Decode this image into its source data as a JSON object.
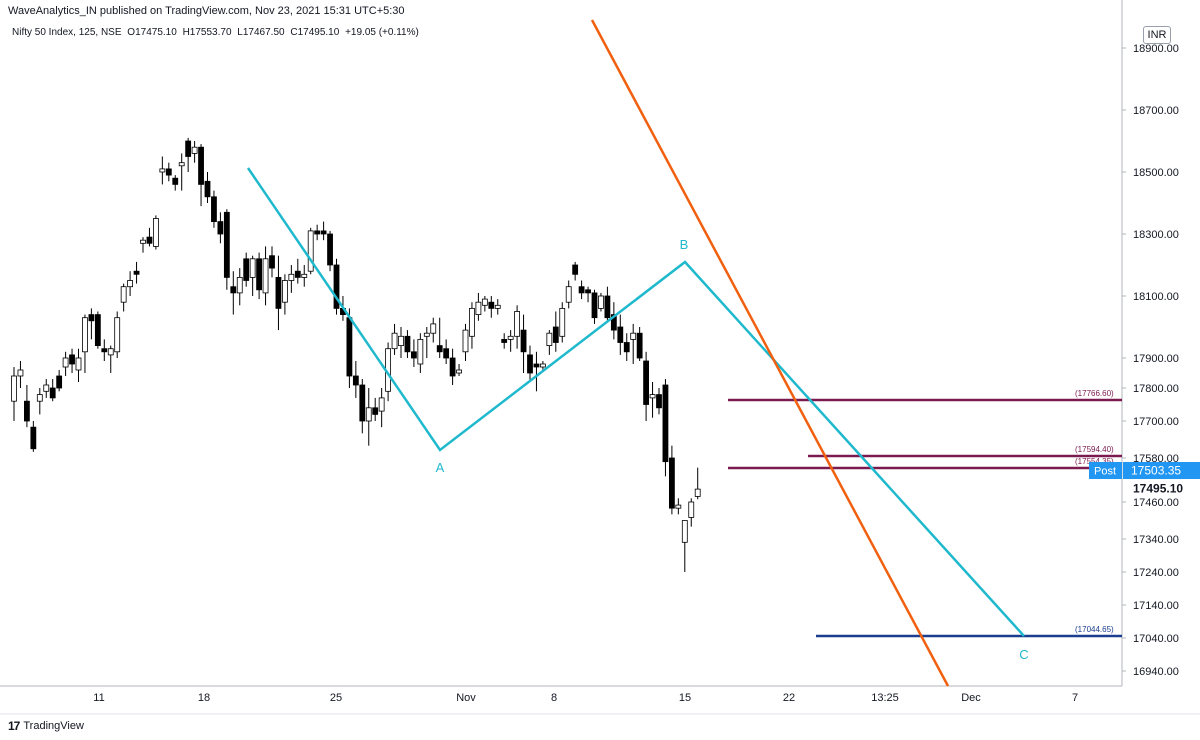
{
  "header": {
    "published": "WaveAnalytics_IN published on TradingView.com, Nov 23, 2021 15:31 UTC+5:30",
    "symbol": "Nifty 50 Index, 125, NSE",
    "open": "O17475.10",
    "high": "H17553.70",
    "low": "L17467.50",
    "close": "C17495.10",
    "change": "+19.05 (+0.11%)",
    "currency": "INR"
  },
  "footer": {
    "brand": "TradingView"
  },
  "colors": {
    "wave": "#1fb9ce",
    "trendline": "#f0600f",
    "level": "#7b1a4e",
    "target": "#1a3d8f",
    "post_badge": "#2196f3",
    "axis_border": "#b2b5be"
  },
  "chart_data": {
    "type": "candlestick",
    "title": "",
    "y_axis": {
      "position": "right",
      "ticks": [
        "18900.00",
        "18700.00",
        "18500.00",
        "18300.00",
        "18100.00",
        "17900.00",
        "17800.00",
        "17700.00",
        "17580.00",
        "17460.00",
        "17340.00",
        "17240.00",
        "17140.00",
        "17040.00",
        "16940.00"
      ]
    },
    "x_axis": {
      "ticks": [
        "11",
        "18",
        "25",
        "Nov",
        "8",
        "15",
        "22",
        "13:25",
        "Dec",
        "7"
      ]
    },
    "price_badges": [
      {
        "label": "Post",
        "value": "17503.35"
      },
      {
        "label": "",
        "value": "17495.10"
      }
    ],
    "horizontal_levels": [
      {
        "label": "(17766.60)",
        "value": 17766.6,
        "color": "#7b1a4e"
      },
      {
        "label": "(17594.40)",
        "value": 17594.4,
        "color": "#7b1a4e"
      },
      {
        "label": "(17554.35)",
        "value": 17554.35,
        "color": "#7b1a4e"
      },
      {
        "label": "(17044.65)",
        "value": 17044.65,
        "color": "#1a3d8f"
      }
    ],
    "wave_labels": [
      {
        "label": "A",
        "price": 17618
      },
      {
        "label": "B",
        "price": 18210
      },
      {
        "label": "C",
        "price": 17044.65
      }
    ],
    "candles": [
      [
        17760,
        17870,
        17700,
        17840
      ],
      [
        17840,
        17890,
        17800,
        17860
      ],
      [
        17760,
        17810,
        17680,
        17700
      ],
      [
        17680,
        17700,
        17600,
        17610
      ],
      [
        17760,
        17800,
        17720,
        17780
      ],
      [
        17790,
        17830,
        17770,
        17810
      ],
      [
        17800,
        17830,
        17760,
        17770
      ],
      [
        17840,
        17860,
        17790,
        17800
      ],
      [
        17870,
        17920,
        17840,
        17900
      ],
      [
        17910,
        17930,
        17850,
        17880
      ],
      [
        17860,
        17930,
        17820,
        17900
      ],
      [
        17920,
        18040,
        17850,
        18030
      ],
      [
        18040,
        18060,
        17960,
        18020
      ],
      [
        18040,
        18050,
        17930,
        17940
      ],
      [
        17930,
        17960,
        17890,
        17920
      ],
      [
        17910,
        17940,
        17850,
        17930
      ],
      [
        17920,
        18050,
        17900,
        18030
      ],
      [
        18080,
        18140,
        18050,
        18130
      ],
      [
        18130,
        18180,
        18100,
        18150
      ],
      [
        18180,
        18210,
        18140,
        18170
      ],
      [
        18270,
        18290,
        18240,
        18280
      ],
      [
        18290,
        18320,
        18260,
        18270
      ],
      [
        18260,
        18360,
        18250,
        18350
      ],
      [
        18500,
        18550,
        18460,
        18510
      ],
      [
        18510,
        18530,
        18470,
        18490
      ],
      [
        18480,
        18490,
        18440,
        18460
      ],
      [
        18520,
        18560,
        18440,
        18530
      ],
      [
        18600,
        18610,
        18500,
        18550
      ],
      [
        18560,
        18600,
        18530,
        18580
      ],
      [
        18580,
        18590,
        18390,
        18460
      ],
      [
        18470,
        18500,
        18400,
        18420
      ],
      [
        18420,
        18440,
        18320,
        18340
      ],
      [
        18340,
        18370,
        18270,
        18300
      ],
      [
        18370,
        18380,
        18120,
        18160
      ],
      [
        18130,
        18180,
        18040,
        18110
      ],
      [
        18110,
        18190,
        18070,
        18160
      ],
      [
        18220,
        18240,
        18130,
        18150
      ],
      [
        18160,
        18230,
        18100,
        18220
      ],
      [
        18220,
        18240,
        18090,
        18120
      ],
      [
        18110,
        18260,
        18070,
        18220
      ],
      [
        18230,
        18260,
        18160,
        18190
      ],
      [
        18160,
        18230,
        17990,
        18060
      ],
      [
        18080,
        18170,
        18040,
        18150
      ],
      [
        18150,
        18200,
        18110,
        18170
      ],
      [
        18180,
        18220,
        18140,
        18160
      ],
      [
        18160,
        18200,
        18130,
        18170
      ],
      [
        18180,
        18320,
        18170,
        18310
      ],
      [
        18310,
        18330,
        18280,
        18300
      ],
      [
        18310,
        18340,
        18280,
        18300
      ],
      [
        18300,
        18310,
        18180,
        18200
      ],
      [
        18200,
        18220,
        18040,
        18060
      ],
      [
        18060,
        18100,
        18020,
        18040
      ],
      [
        18030,
        18060,
        17800,
        17840
      ],
      [
        17840,
        17890,
        17770,
        17810
      ],
      [
        17810,
        17830,
        17660,
        17700
      ],
      [
        17700,
        17800,
        17620,
        17740
      ],
      [
        17740,
        17770,
        17700,
        17720
      ],
      [
        17730,
        17800,
        17680,
        17770
      ],
      [
        17790,
        17950,
        17760,
        17930
      ],
      [
        17930,
        18010,
        17910,
        17980
      ],
      [
        17940,
        18000,
        17900,
        17970
      ],
      [
        17970,
        17990,
        17900,
        17920
      ],
      [
        17920,
        17960,
        17870,
        17900
      ],
      [
        17880,
        17980,
        17850,
        17960
      ],
      [
        17970,
        18000,
        17900,
        17980
      ],
      [
        17980,
        18030,
        17950,
        18010
      ],
      [
        17940,
        18030,
        17900,
        17920
      ],
      [
        17930,
        17960,
        17880,
        17900
      ],
      [
        17900,
        17930,
        17810,
        17840
      ],
      [
        17850,
        17880,
        17840,
        17860
      ],
      [
        17920,
        18010,
        17890,
        17990
      ],
      [
        17970,
        18080,
        17930,
        18060
      ],
      [
        18040,
        18110,
        18020,
        18080
      ],
      [
        18070,
        18100,
        18050,
        18090
      ],
      [
        18080,
        18100,
        18030,
        18060
      ],
      [
        18060,
        18090,
        18040,
        18070
      ],
      [
        17960,
        17980,
        17930,
        17950
      ],
      [
        17960,
        17990,
        17920,
        17970
      ],
      [
        17970,
        18070,
        17930,
        18050
      ],
      [
        17990,
        18040,
        17850,
        17920
      ],
      [
        17910,
        17940,
        17820,
        17850
      ],
      [
        17880,
        17920,
        17790,
        17870
      ],
      [
        17870,
        17890,
        17860,
        17880
      ],
      [
        17940,
        17990,
        17910,
        17980
      ],
      [
        18000,
        18050,
        17920,
        17950
      ],
      [
        17970,
        18080,
        17950,
        18060
      ],
      [
        18080,
        18150,
        18060,
        18130
      ],
      [
        18200,
        18210,
        18150,
        18170
      ],
      [
        18130,
        18150,
        18090,
        18110
      ],
      [
        18120,
        18130,
        18080,
        18110
      ],
      [
        18110,
        18120,
        18010,
        18030
      ],
      [
        18060,
        18110,
        18050,
        18100
      ],
      [
        18100,
        18130,
        18020,
        18030
      ],
      [
        18040,
        18080,
        17960,
        17990
      ],
      [
        18000,
        18040,
        17910,
        17950
      ],
      [
        17950,
        17980,
        17890,
        17920
      ],
      [
        17960,
        18010,
        17880,
        17980
      ],
      [
        17980,
        18000,
        17890,
        17900
      ],
      [
        17890,
        17920,
        17700,
        17750
      ],
      [
        17770,
        17820,
        17710,
        17780
      ],
      [
        17780,
        17800,
        17720,
        17740
      ],
      [
        17810,
        17830,
        17530,
        17570
      ],
      [
        17580,
        17620,
        17420,
        17440
      ],
      [
        17440,
        17470,
        17420,
        17450
      ],
      [
        17330,
        17400,
        17240,
        17400
      ],
      [
        17410,
        17470,
        17380,
        17460
      ],
      [
        17475.1,
        17553.7,
        17467.5,
        17495.1
      ]
    ]
  }
}
